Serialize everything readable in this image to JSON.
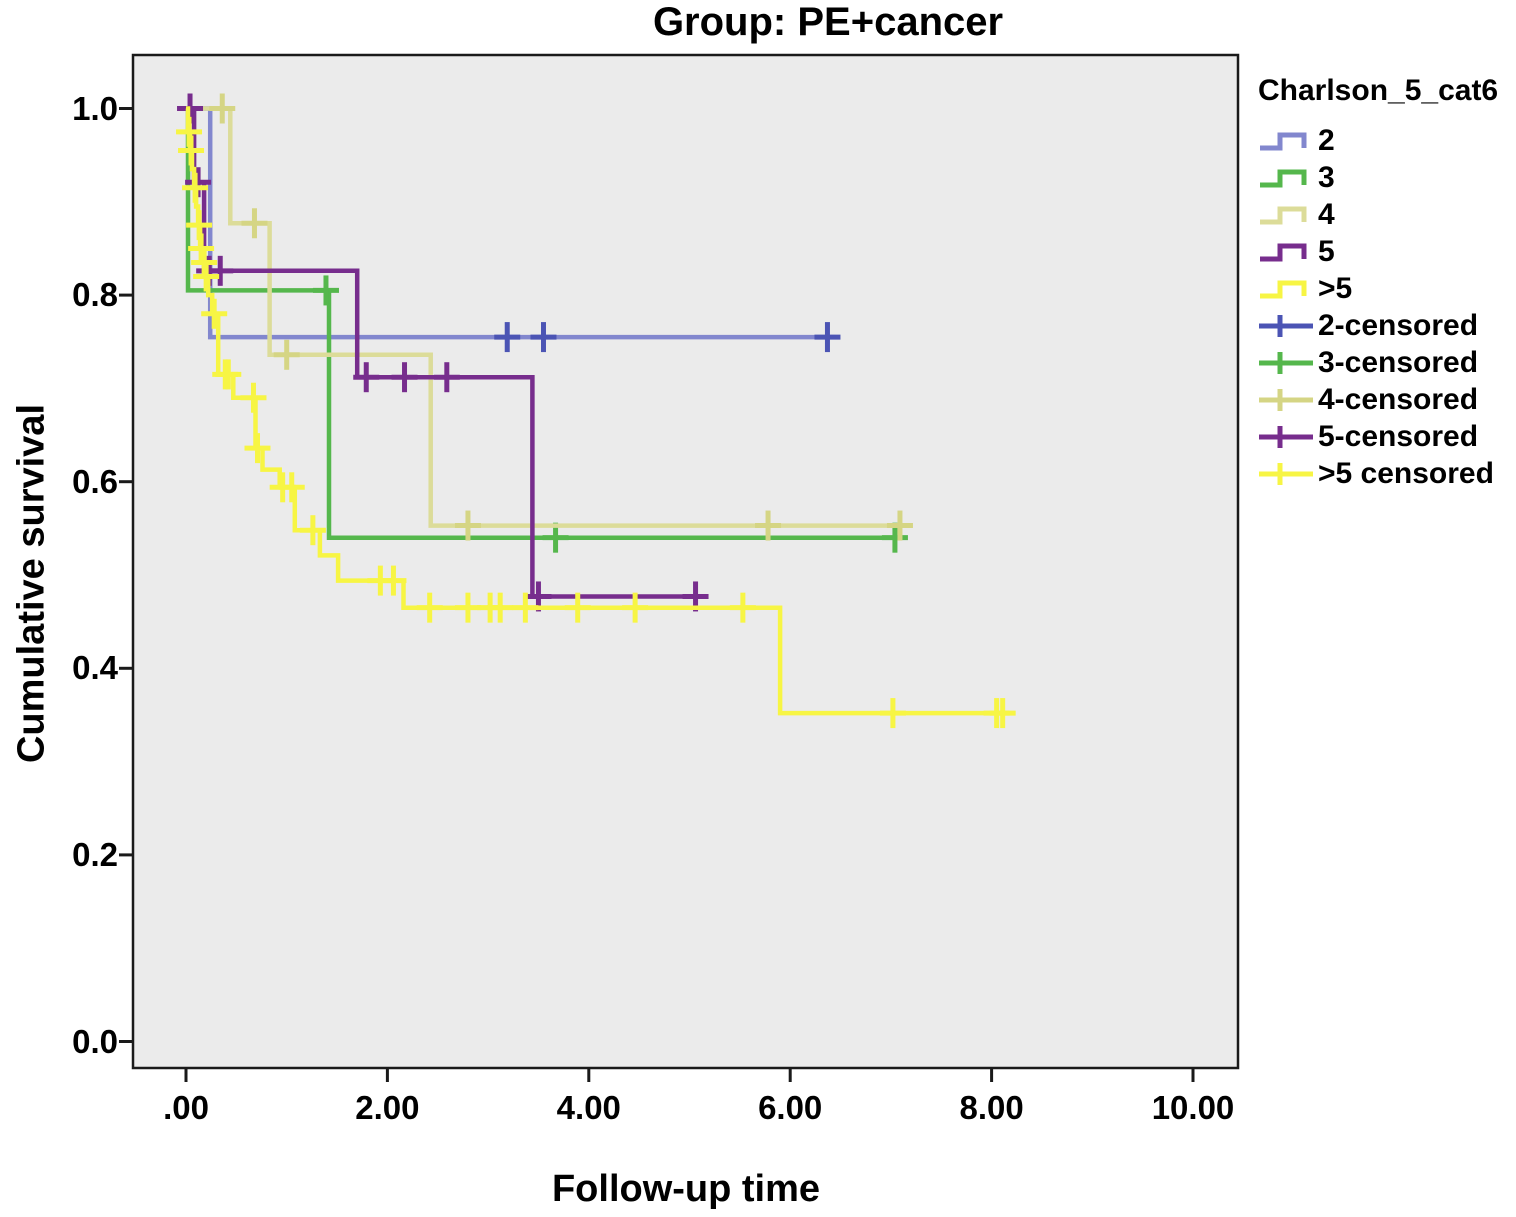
{
  "title": "Group: PE+cancer",
  "axes": {
    "y_label": "Cumulative survival",
    "x_label": "Follow-up time",
    "y_tick_labels": [
      "1.0",
      "0.8",
      "0.6",
      "0.4",
      "0.2",
      "0.0"
    ],
    "x_tick_labels": [
      ".00",
      "2.00",
      "4.00",
      "6.00",
      "8.00",
      "10.00"
    ]
  },
  "legend": {
    "title": "Charlson_5_cat6",
    "line_items": [
      {
        "label": "2",
        "color": "#8287CE"
      },
      {
        "label": "3",
        "color": "#55B74C"
      },
      {
        "label": "4",
        "color": "#DCDC99"
      },
      {
        "label": "5",
        "color": "#772D8D"
      },
      {
        "label": ">5",
        "color": "#F7F544"
      }
    ],
    "censor_items": [
      {
        "label": "2-censored",
        "color": "#4B54B4"
      },
      {
        "label": "3-censored",
        "color": "#55B74C"
      },
      {
        "label": "4-censored",
        "color": "#D5D584"
      },
      {
        "label": "5-censored",
        "color": "#772D8D"
      },
      {
        "label": ">5 censored",
        "color": "#F7F544"
      }
    ]
  },
  "chart_data": {
    "type": "line",
    "subtype": "kaplan-meier-step",
    "title": "Group: PE+cancer",
    "xlabel": "Follow-up time",
    "ylabel": "Cumulative survival",
    "group_variable": "Charlson_5_cat6",
    "xlim": [
      -0.53,
      10.45
    ],
    "ylim": [
      -0.029,
      1.058
    ],
    "x_ticks": [
      0,
      2,
      4,
      6,
      8,
      10
    ],
    "y_ticks": [
      1.0,
      0.8,
      0.6,
      0.4,
      0.2,
      0.0
    ],
    "grid": false,
    "legend_position": "right",
    "panel_color": "#EBEBEB",
    "series": [
      {
        "name": "2",
        "color": "#8287CE",
        "censor_color": "#4B54B4",
        "steps": [
          [
            0,
            1.0
          ],
          [
            0.24,
            1.0
          ],
          [
            0.24,
            0.755
          ],
          [
            6.45,
            0.755
          ]
        ],
        "censors": [
          [
            3.19,
            0.755
          ],
          [
            3.55,
            0.755
          ],
          [
            6.37,
            0.755
          ]
        ]
      },
      {
        "name": "3",
        "color": "#55B74C",
        "censor_color": "#55B74C",
        "steps": [
          [
            0,
            1.0
          ],
          [
            0.02,
            1.0
          ],
          [
            0.02,
            0.805
          ],
          [
            1.42,
            0.805
          ],
          [
            1.42,
            0.54
          ],
          [
            7.1,
            0.54
          ]
        ],
        "censors": [
          [
            1.39,
            0.805
          ],
          [
            3.67,
            0.54
          ],
          [
            7.04,
            0.54
          ]
        ]
      },
      {
        "name": "4",
        "color": "#DCDC99",
        "censor_color": "#D5D584",
        "steps": [
          [
            0,
            1.0
          ],
          [
            0.44,
            1.0
          ],
          [
            0.44,
            0.877
          ],
          [
            0.83,
            0.877
          ],
          [
            0.83,
            0.736
          ],
          [
            2.43,
            0.736
          ],
          [
            2.43,
            0.553
          ],
          [
            7.17,
            0.553
          ]
        ],
        "censors": [
          [
            0.36,
            1.0
          ],
          [
            0.68,
            0.877
          ],
          [
            1.0,
            0.736
          ],
          [
            2.8,
            0.553
          ],
          [
            5.78,
            0.553
          ],
          [
            7.09,
            0.553
          ]
        ]
      },
      {
        "name": "5",
        "color": "#772D8D",
        "censor_color": "#772D8D",
        "steps": [
          [
            0,
            1.0
          ],
          [
            0.08,
            1.0
          ],
          [
            0.08,
            0.921
          ],
          [
            0.18,
            0.921
          ],
          [
            0.18,
            0.826
          ],
          [
            1.7,
            0.826
          ],
          [
            1.7,
            0.712
          ],
          [
            3.44,
            0.712
          ],
          [
            3.44,
            0.477
          ],
          [
            5.12,
            0.477
          ]
        ],
        "censors": [
          [
            0.04,
            1.0
          ],
          [
            0.12,
            0.921
          ],
          [
            0.23,
            0.826
          ],
          [
            0.34,
            0.826
          ],
          [
            1.79,
            0.712
          ],
          [
            2.17,
            0.712
          ],
          [
            2.59,
            0.712
          ],
          [
            3.5,
            0.477
          ],
          [
            5.06,
            0.477
          ]
        ]
      },
      {
        "name": ">5",
        "color": "#F7F544",
        "censor_color": "#F7F544",
        "steps": [
          [
            0,
            1.0
          ],
          [
            0.02,
            1.0
          ],
          [
            0.02,
            0.975
          ],
          [
            0.04,
            0.975
          ],
          [
            0.04,
            0.955
          ],
          [
            0.06,
            0.955
          ],
          [
            0.06,
            0.935
          ],
          [
            0.08,
            0.935
          ],
          [
            0.08,
            0.915
          ],
          [
            0.1,
            0.915
          ],
          [
            0.1,
            0.895
          ],
          [
            0.12,
            0.895
          ],
          [
            0.12,
            0.875
          ],
          [
            0.14,
            0.875
          ],
          [
            0.14,
            0.85
          ],
          [
            0.16,
            0.85
          ],
          [
            0.16,
            0.835
          ],
          [
            0.19,
            0.835
          ],
          [
            0.19,
            0.82
          ],
          [
            0.22,
            0.82
          ],
          [
            0.22,
            0.8
          ],
          [
            0.26,
            0.8
          ],
          [
            0.26,
            0.78
          ],
          [
            0.32,
            0.78
          ],
          [
            0.32,
            0.715
          ],
          [
            0.47,
            0.715
          ],
          [
            0.47,
            0.69
          ],
          [
            0.69,
            0.69
          ],
          [
            0.69,
            0.636
          ],
          [
            0.76,
            0.636
          ],
          [
            0.76,
            0.613
          ],
          [
            0.93,
            0.613
          ],
          [
            0.93,
            0.594
          ],
          [
            1.08,
            0.594
          ],
          [
            1.08,
            0.548
          ],
          [
            1.33,
            0.548
          ],
          [
            1.33,
            0.521
          ],
          [
            1.51,
            0.521
          ],
          [
            1.51,
            0.494
          ],
          [
            2.16,
            0.494
          ],
          [
            2.16,
            0.465
          ],
          [
            5.9,
            0.465
          ],
          [
            5.9,
            0.352
          ],
          [
            8.16,
            0.352
          ]
        ],
        "censors": [
          [
            0.03,
            0.975
          ],
          [
            0.05,
            0.955
          ],
          [
            0.09,
            0.915
          ],
          [
            0.13,
            0.875
          ],
          [
            0.15,
            0.85
          ],
          [
            0.18,
            0.835
          ],
          [
            0.2,
            0.82
          ],
          [
            0.28,
            0.78
          ],
          [
            0.39,
            0.715
          ],
          [
            0.42,
            0.715
          ],
          [
            0.67,
            0.69
          ],
          [
            0.71,
            0.636
          ],
          [
            0.96,
            0.594
          ],
          [
            1.05,
            0.594
          ],
          [
            1.26,
            0.548
          ],
          [
            1.93,
            0.494
          ],
          [
            2.06,
            0.494
          ],
          [
            2.42,
            0.465
          ],
          [
            2.8,
            0.465
          ],
          [
            3.02,
            0.465
          ],
          [
            3.12,
            0.465
          ],
          [
            3.37,
            0.465
          ],
          [
            3.89,
            0.465
          ],
          [
            4.46,
            0.465
          ],
          [
            5.53,
            0.465
          ],
          [
            7.02,
            0.352
          ],
          [
            8.05,
            0.352
          ],
          [
            8.11,
            0.352
          ]
        ]
      }
    ]
  }
}
